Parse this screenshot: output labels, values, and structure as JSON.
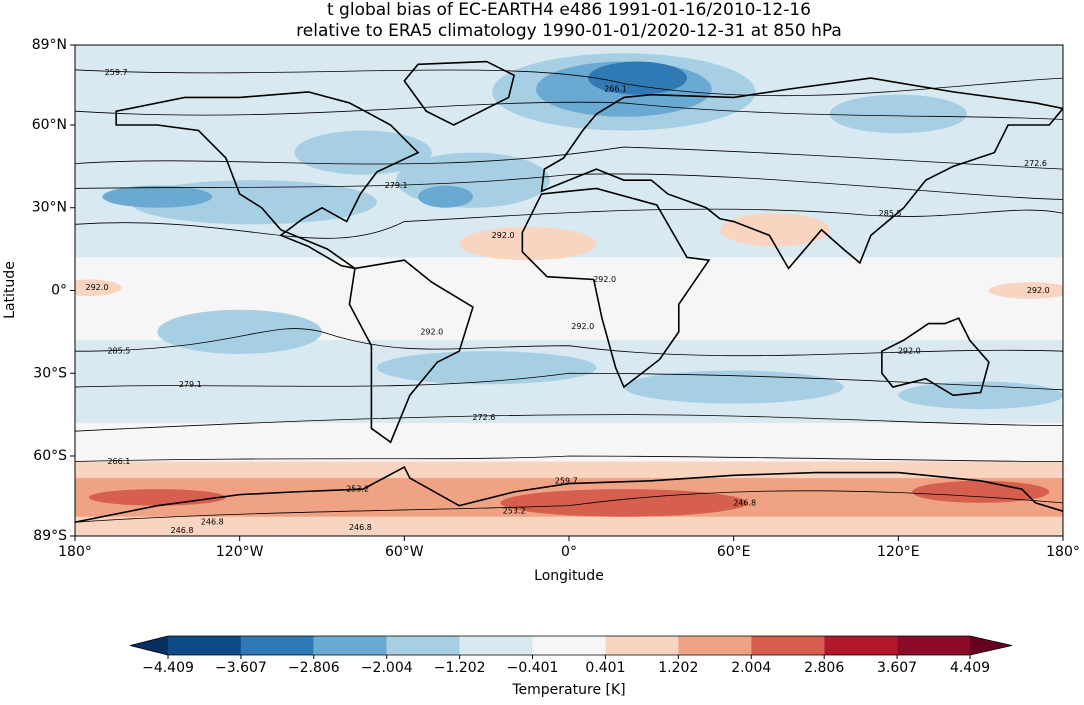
{
  "chart_data": {
    "type": "map",
    "title": [
      "t global bias of EC-EARTH4 e486 1991-01-16/2010-12-16",
      "relative to ERA5 climatology 1990-01-01/2020-12-31 at 850 hPa"
    ],
    "xlabel": "Longitude",
    "ylabel": "Latitude",
    "xlim": [
      -180,
      180
    ],
    "xticks": [
      {
        "value": -180,
        "label": "180°"
      },
      {
        "value": -120,
        "label": "120°W"
      },
      {
        "value": -60,
        "label": "60°W"
      },
      {
        "value": 0,
        "label": "0°"
      },
      {
        "value": 60,
        "label": "60°E"
      },
      {
        "value": 120,
        "label": "120°E"
      },
      {
        "value": 180,
        "label": "180°"
      }
    ],
    "ylim": [
      -89,
      89
    ],
    "yticks": [
      {
        "value": 89,
        "label": "89°N"
      },
      {
        "value": 60,
        "label": "60°N"
      },
      {
        "value": 30,
        "label": "30°N"
      },
      {
        "value": 0,
        "label": "0°"
      },
      {
        "value": -30,
        "label": "30°S"
      },
      {
        "value": -60,
        "label": "60°S"
      },
      {
        "value": -89,
        "label": "89°S"
      }
    ],
    "contour_labels": [
      {
        "label": "259.7",
        "lon": -165,
        "lat": 79
      },
      {
        "label": "266.1",
        "lon": 17,
        "lat": 73
      },
      {
        "label": "272.6",
        "lon": 170,
        "lat": 46
      },
      {
        "label": "279.1",
        "lon": -63,
        "lat": 38
      },
      {
        "label": "285.5",
        "lon": 117,
        "lat": 28
      },
      {
        "label": "292.0",
        "lon": -172,
        "lat": 1
      },
      {
        "label": "292.0",
        "lon": -24,
        "lat": 20
      },
      {
        "label": "292.0",
        "lon": 13,
        "lat": 4
      },
      {
        "label": "292.0",
        "lon": 5,
        "lat": -13
      },
      {
        "label": "292.0",
        "lon": -50,
        "lat": -15
      },
      {
        "label": "292.0",
        "lon": 171,
        "lat": 0
      },
      {
        "label": "292.0",
        "lon": 124,
        "lat": -22
      },
      {
        "label": "285.5",
        "lon": -164,
        "lat": -22
      },
      {
        "label": "279.1",
        "lon": -138,
        "lat": -34
      },
      {
        "label": "272.6",
        "lon": -31,
        "lat": -46
      },
      {
        "label": "266.1",
        "lon": -164,
        "lat": -62
      },
      {
        "label": "259.7",
        "lon": -1,
        "lat": -69
      },
      {
        "label": "253.2",
        "lon": -77,
        "lat": -72
      },
      {
        "label": "253.2",
        "lon": -20,
        "lat": -80
      },
      {
        "label": "246.8",
        "lon": 64,
        "lat": -77
      },
      {
        "label": "246.8",
        "lon": -130,
        "lat": -84
      },
      {
        "label": "246.8",
        "lon": -141,
        "lat": -87
      },
      {
        "label": "246.8",
        "lon": -76,
        "lat": -86
      }
    ],
    "colorbar": {
      "label": "Temperature [K]",
      "levels": [
        {
          "value": -4.409,
          "label": "−4.409"
        },
        {
          "value": -3.607,
          "label": "−3.607"
        },
        {
          "value": -2.806,
          "label": "−2.806"
        },
        {
          "value": -2.004,
          "label": "−2.004"
        },
        {
          "value": -1.202,
          "label": "−1.202"
        },
        {
          "value": -0.401,
          "label": "−0.401"
        },
        0.401,
        1.202,
        2.004,
        2.806,
        3.607,
        4.409
      ],
      "colors": [
        "#0d4a87",
        "#2f79b5",
        "#6aaad2",
        "#a7cfe4",
        "#d8e9f1",
        "#f6f6f6",
        "#f9d4c0",
        "#efa384",
        "#d6604d",
        "#b2182b",
        "#8b0a2a"
      ],
      "under_color": "#053061",
      "over_color": "#67001f"
    }
  }
}
